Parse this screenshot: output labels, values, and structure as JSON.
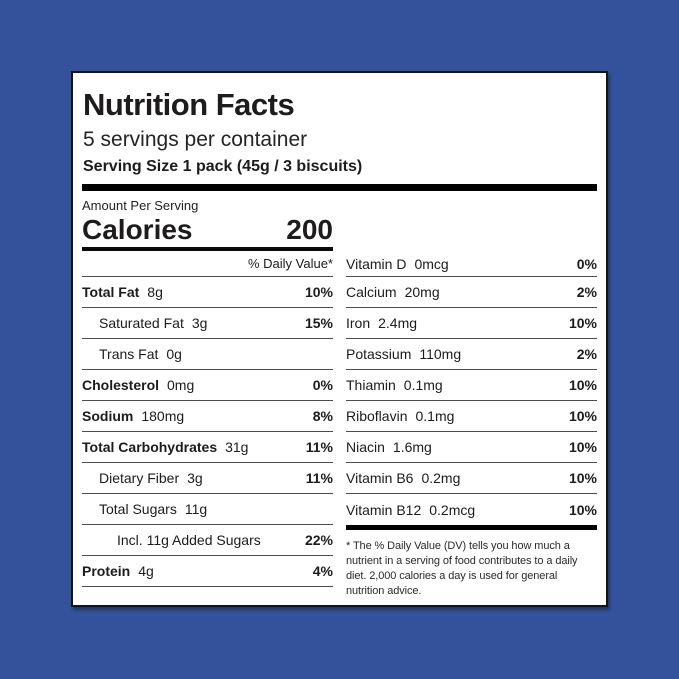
{
  "colors": {
    "background_blue": "#33529B",
    "panel_white": "#FFFFFF",
    "text_black": "#1D1B1B",
    "rule_gray": "#4D4D4D",
    "bar_black": "#000000"
  },
  "label": {
    "title": "Nutrition Facts",
    "servings_per_container": "5 servings per container",
    "serving_size": "Serving Size 1 pack (45g / 3 biscuits)",
    "amount_per_serving": "Amount Per Serving",
    "calories_label": "Calories",
    "calories_value": "200",
    "daily_value_header": "% Daily Value*",
    "left_rows": [
      {
        "name": "Total Fat",
        "amount": "8g",
        "dv": "10%",
        "bold": true,
        "indent": 0
      },
      {
        "name": "Saturated Fat",
        "amount": "3g",
        "dv": "15%",
        "bold": false,
        "indent": 1
      },
      {
        "name": "Trans Fat",
        "amount": "0g",
        "dv": "",
        "bold": false,
        "indent": 1
      },
      {
        "name": "Cholesterol",
        "amount": "0mg",
        "dv": "0%",
        "bold": true,
        "indent": 0
      },
      {
        "name": "Sodium",
        "amount": "180mg",
        "dv": "8%",
        "bold": true,
        "indent": 0
      },
      {
        "name": "Total Carbohydrates",
        "amount": "31g",
        "dv": "11%",
        "bold": true,
        "indent": 0
      },
      {
        "name": "Dietary Fiber",
        "amount": "3g",
        "dv": "11%",
        "bold": false,
        "indent": 1
      },
      {
        "name": "Total Sugars",
        "amount": "11g",
        "dv": "",
        "bold": false,
        "indent": 1
      },
      {
        "name": "Incl. 11g Added Sugars",
        "amount": "",
        "dv": "22%",
        "bold": false,
        "indent": 2
      },
      {
        "name": "Protein",
        "amount": "4g",
        "dv": "4%",
        "bold": true,
        "indent": 0
      }
    ],
    "right_rows": [
      {
        "name": "Vitamin D",
        "amount": "0mcg",
        "dv": "0%"
      },
      {
        "name": "Calcium",
        "amount": "20mg",
        "dv": "2%"
      },
      {
        "name": "Iron",
        "amount": "2.4mg",
        "dv": "10%"
      },
      {
        "name": "Potassium",
        "amount": "110mg",
        "dv": "2%"
      },
      {
        "name": "Thiamin",
        "amount": "0.1mg",
        "dv": "10%"
      },
      {
        "name": "Riboflavin",
        "amount": "0.1mg",
        "dv": "10%"
      },
      {
        "name": "Niacin",
        "amount": "1.6mg",
        "dv": "10%"
      },
      {
        "name": "Vitamin B6",
        "amount": "0.2mg",
        "dv": "10%"
      },
      {
        "name": "Vitamin B12",
        "amount": "0.2mcg",
        "dv": "10%"
      }
    ],
    "footnote": "* The % Daily Value (DV) tells you how much a nutrient in a serving of food contributes to a daily diet. 2,000 calories a day is used for general nutrition advice."
  }
}
